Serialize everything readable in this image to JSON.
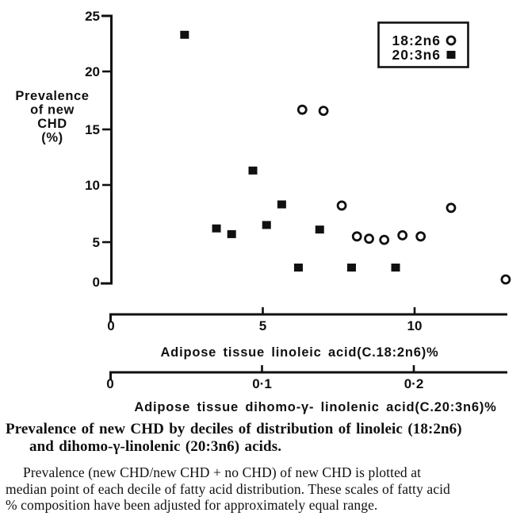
{
  "page": {
    "background": "#ffffff",
    "ink": "#101010"
  },
  "y_axis": {
    "label_lines": [
      "Prevalence",
      "of new",
      "CHD",
      "(%)"
    ],
    "tick_labels": [
      "25",
      "20",
      "15",
      "10",
      "5",
      "0"
    ],
    "tick_values": [
      25,
      20,
      15,
      10,
      5,
      0
    ]
  },
  "x_axes": {
    "linoleic": {
      "label": "Adipose tissue linoleic acid(C.18:2n6)%",
      "tick_labels": [
        "0",
        "5",
        "10"
      ],
      "tick_values": [
        0,
        5,
        10
      ]
    },
    "dihomo": {
      "label": "Adipose tissue dihomo-γ- linolenic acid(C.20:3n6)%",
      "tick_labels": [
        "0",
        "0·1",
        "0·2"
      ],
      "tick_values": [
        0,
        0.1,
        0.2
      ]
    }
  },
  "legend": {
    "items": [
      {
        "label": "18:2n6",
        "marker": "open-circle"
      },
      {
        "label": "20:3n6",
        "marker": "filled-square"
      }
    ]
  },
  "chart_data": {
    "type": "scatter",
    "title": "Prevalence of new CHD by deciles of distribution of linoleic (18:2n6) and dihomo-γ-linolenic (20:3n6) acids",
    "ylabel": "Prevalence of new CHD (%)",
    "ylim": [
      0,
      25
    ],
    "grid": false,
    "legend_position": "top-right",
    "series": [
      {
        "name": "18:2n6",
        "marker": "open-circle",
        "x_axis": "linoleic",
        "xlabel": "Adipose tissue linoleic acid (C.18:2n6) %",
        "xlim": [
          0,
          13
        ],
        "points": [
          [
            6.3,
            16.7
          ],
          [
            7.0,
            16.6
          ],
          [
            7.6,
            8.2
          ],
          [
            8.1,
            5.5
          ],
          [
            8.5,
            5.3
          ],
          [
            9.0,
            5.2
          ],
          [
            9.6,
            5.6
          ],
          [
            10.2,
            5.5
          ],
          [
            11.2,
            8.0
          ],
          [
            13.0,
            0.3
          ]
        ]
      },
      {
        "name": "20:3n6",
        "marker": "filled-square",
        "x_axis": "dihomo",
        "xlabel": "Adipose tissue dihomo-γ-linolenic acid (C.20:3n6) %",
        "xlim": [
          0,
          0.26
        ],
        "points": [
          [
            0.049,
            23.3
          ],
          [
            0.07,
            6.2
          ],
          [
            0.08,
            5.7
          ],
          [
            0.094,
            11.3
          ],
          [
            0.103,
            6.5
          ],
          [
            0.113,
            8.3
          ],
          [
            0.124,
            1.8
          ],
          [
            0.138,
            6.1
          ],
          [
            0.159,
            1.8
          ],
          [
            0.188,
            1.8
          ]
        ]
      }
    ]
  },
  "caption": {
    "bold_line1": "Prevalence of new CHD by deciles of distribution of linoleic (18:2n6)",
    "bold_line2": "and dihomo-γ-linolenic (20:3n6) acids.",
    "para_line1": "Prevalence (new CHD/new CHD + no CHD) of new CHD is plotted at",
    "para_line2": "median point of each decile of fatty acid distribution. These scales of fatty acid",
    "para_line3": "% composition have been adjusted for approximately equal range."
  }
}
